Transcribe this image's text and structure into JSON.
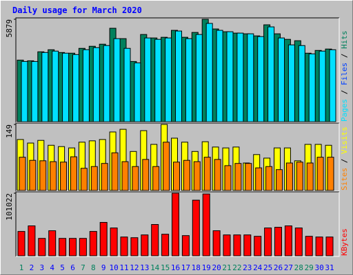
{
  "chart_data": [
    {
      "type": "bar",
      "title": "Daily usage for March 2020",
      "ylim": [
        0,
        5879
      ],
      "yticks": [
        5879
      ],
      "legend_separator": " / ",
      "series": [
        {
          "name": "Hits",
          "color": "#00805c",
          "values": [
            3535,
            3496,
            4012,
            4131,
            3972,
            3933,
            4211,
            4330,
            4449,
            5363,
            4767,
            3456,
            5005,
            4807,
            4846,
            5244,
            4846,
            5124,
            5879,
            5323,
            5164,
            5085,
            5045,
            4926,
            5561,
            5045,
            4727,
            4648,
            3933,
            4092,
            4171
          ]
        },
        {
          "name": "Files",
          "color": "#0040ff",
          "values": [
            null,
            null,
            null,
            null,
            null,
            null,
            null,
            null,
            null,
            null,
            null,
            null,
            null,
            null,
            null,
            null,
            null,
            null,
            null,
            null,
            null,
            null,
            null,
            null,
            null,
            null,
            null,
            null,
            null,
            null,
            null
          ]
        },
        {
          "name": "Pages",
          "color": "#00e0ff",
          "values": [
            3456,
            3456,
            3972,
            4052,
            3933,
            3853,
            4131,
            4250,
            4370,
            4767,
            4211,
            3376,
            4807,
            4727,
            4807,
            5204,
            4767,
            5005,
            5641,
            5244,
            5164,
            5085,
            5045,
            4886,
            5442,
            4807,
            4409,
            4370,
            3893,
            4052,
            4131
          ]
        }
      ]
    },
    {
      "type": "bar",
      "ylim": [
        0,
        149
      ],
      "yticks": [
        149
      ],
      "legend_separator": " / ",
      "series": [
        {
          "name": "Visits",
          "color": "#ffff00",
          "values": [
            115,
            107,
            113,
            102,
            99,
            96,
            109,
            112,
            115,
            132,
            138,
            88,
            135,
            104,
            149,
            118,
            109,
            88,
            110,
            98,
            96,
            98,
            62,
            81,
            73,
            96,
            96,
            67,
            104,
            104,
            102
          ]
        },
        {
          "name": "Sites",
          "color": "#ff8000",
          "values": [
            75,
            68,
            67,
            65,
            64,
            76,
            50,
            54,
            61,
            85,
            65,
            54,
            70,
            54,
            109,
            64,
            68,
            65,
            75,
            70,
            56,
            61,
            61,
            51,
            54,
            47,
            62,
            64,
            62,
            75,
            75
          ]
        }
      ]
    },
    {
      "type": "bar",
      "ylim": [
        0,
        101022
      ],
      "yticks": [
        101022
      ],
      "categories": [
        "1",
        "2",
        "3",
        "4",
        "5",
        "6",
        "7",
        "8",
        "9",
        "10",
        "11",
        "12",
        "13",
        "14",
        "15",
        "16",
        "17",
        "18",
        "19",
        "20",
        "21",
        "22",
        "23",
        "24",
        "25",
        "26",
        "27",
        "28",
        "29",
        "30",
        "31"
      ],
      "category_colors": [
        "#00805c",
        "#0000ff",
        "#0000ff",
        "#0000ff",
        "#0000ff",
        "#0000ff",
        "#00805c",
        "#00805c",
        "#0000ff",
        "#0000ff",
        "#0000ff",
        "#0000ff",
        "#0000ff",
        "#00805c",
        "#00805c",
        "#0000ff",
        "#0000ff",
        "#0000ff",
        "#0000ff",
        "#0000ff",
        "#00805c",
        "#00805c",
        "#0000ff",
        "#0000ff",
        "#0000ff",
        "#0000ff",
        "#0000ff",
        "#00805c",
        "#00805c",
        "#0000ff",
        "#0000ff"
      ],
      "series": [
        {
          "name": "KBytes",
          "color": "#ff0000",
          "values": [
            39286,
            48266,
            28062,
            40409,
            28062,
            28062,
            28062,
            39286,
            53879,
            44899,
            30307,
            29184,
            33674,
            50511,
            34796,
            101022,
            32551,
            89797,
            99800,
            40409,
            33674,
            33674,
            33674,
            31429,
            44899,
            46021,
            48266,
            44899,
            31429,
            30307,
            30307
          ]
        }
      ]
    }
  ]
}
